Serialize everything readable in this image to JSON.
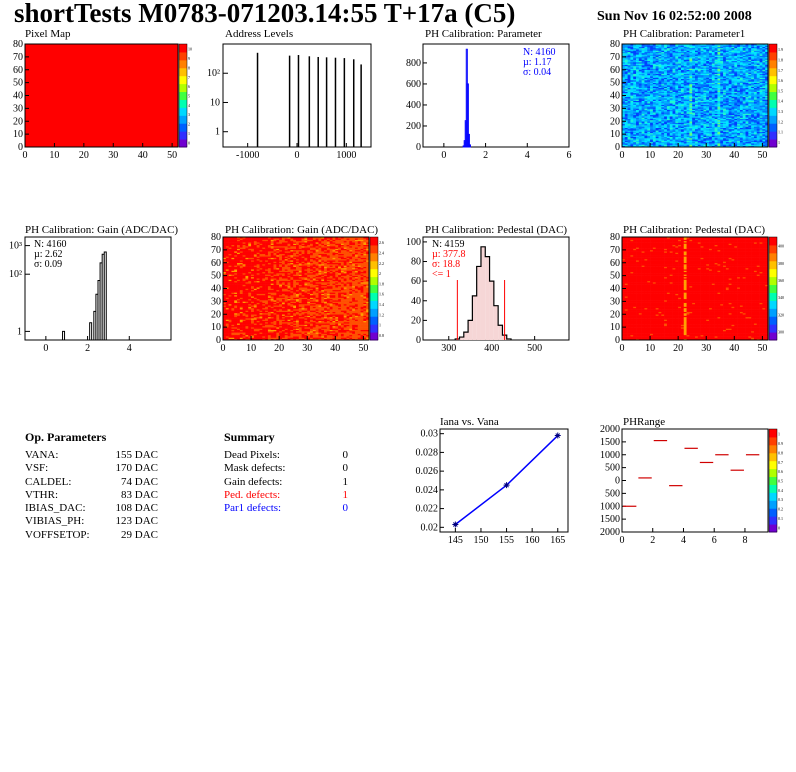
{
  "header": {
    "title": "shortTests M0783-071203.14:55 T+17a (C5)",
    "date": "Sun Nov 16 02:52:00 2008"
  },
  "colors": {
    "axis": "#000000",
    "blue": "#0000ff",
    "red": "#ff0000",
    "hist_black": "#000000"
  },
  "chart_data": [
    {
      "id": "pixel_map",
      "type": "heatmap",
      "title": "Pixel Map",
      "x_ticks": [
        "0",
        "10",
        "20",
        "30",
        "40",
        "50"
      ],
      "y_ticks": [
        "0",
        "10",
        "20",
        "30",
        "40",
        "50",
        "60",
        "70",
        "80"
      ],
      "xlim": [
        0,
        52
      ],
      "ylim": [
        0,
        80
      ],
      "colorbar_ticks": [
        "0",
        "1",
        "2",
        "3",
        "4",
        "5",
        "6",
        "7",
        "8",
        "9",
        "10"
      ],
      "uniform_value": 10
    },
    {
      "id": "address_levels",
      "type": "bar",
      "title": "Address Levels",
      "x_ticks": [
        "-1000",
        "0",
        "1000"
      ],
      "y_ticks": [
        "1",
        "10",
        "10²"
      ],
      "xlim": [
        -1500,
        1500
      ],
      "y_scale": "log",
      "peaks_x": [
        -800,
        -150,
        30,
        250,
        430,
        600,
        780,
        960,
        1150,
        1300
      ],
      "peaks_y": [
        500,
        400,
        420,
        380,
        360,
        350,
        340,
        330,
        300,
        200
      ]
    },
    {
      "id": "ph_cal_param",
      "type": "bar",
      "title": "PH Calibration: Parameter",
      "x_ticks": [
        "0",
        "2",
        "4",
        "6"
      ],
      "y_ticks": [
        "0",
        "200",
        "400",
        "600",
        "800"
      ],
      "xlim": [
        -1,
        6
      ],
      "ylim": [
        0,
        980
      ],
      "x": [
        0.95,
        1.0,
        1.05,
        1.1,
        1.15,
        1.2,
        1.25
      ],
      "y": [
        10,
        60,
        250,
        930,
        600,
        120,
        20
      ],
      "stats": [
        "N: 4160",
        "µ: 1.17",
        "σ: 0.04"
      ]
    },
    {
      "id": "ph_cal_param1",
      "type": "heatmap",
      "title": "PH Calibration: Parameter1",
      "x_ticks": [
        "0",
        "10",
        "20",
        "30",
        "40",
        "50"
      ],
      "y_ticks": [
        "0",
        "10",
        "20",
        "30",
        "40",
        "50",
        "60",
        "70",
        "80"
      ],
      "xlim": [
        0,
        52
      ],
      "ylim": [
        0,
        80
      ],
      "colorbar_ticks": [
        "1",
        "1.1",
        "1.2",
        "1.3",
        "1.4",
        "1.5",
        "1.6",
        "1.7",
        "1.8",
        "1.9"
      ]
    },
    {
      "id": "ph_cal_gain_hist",
      "type": "bar",
      "title": "PH Calibration: Gain (ADC/DAC)",
      "x_ticks": [
        "0",
        "2",
        "4"
      ],
      "y_ticks": [
        "1",
        "10²",
        "10³"
      ],
      "xlim": [
        -1,
        6
      ],
      "y_scale": "log",
      "x": [
        0.8,
        2.1,
        2.3,
        2.4,
        2.5,
        2.6,
        2.7,
        2.8
      ],
      "y": [
        1,
        2,
        5,
        20,
        60,
        250,
        500,
        600
      ],
      "stats": [
        "N: 4160",
        "µ: 2.62",
        "σ: 0.09"
      ]
    },
    {
      "id": "ph_cal_gain_map",
      "type": "heatmap",
      "title": "PH Calibration: Gain (ADC/DAC)",
      "x_ticks": [
        "0",
        "10",
        "20",
        "30",
        "40",
        "50"
      ],
      "y_ticks": [
        "0",
        "10",
        "20",
        "30",
        "40",
        "50",
        "60",
        "70",
        "80"
      ],
      "xlim": [
        0,
        52
      ],
      "ylim": [
        0,
        80
      ],
      "colorbar_ticks": [
        "0.8",
        "1",
        "1.2",
        "1.4",
        "1.6",
        "1.8",
        "2",
        "2.2",
        "2.4",
        "2.6"
      ]
    },
    {
      "id": "ph_cal_pedestal_hist",
      "type": "bar",
      "title": "PH Calibration: Pedestal (DAC)",
      "x_ticks": [
        "300",
        "400",
        "500"
      ],
      "y_ticks": [
        "0",
        "20",
        "40",
        "60",
        "80",
        "100"
      ],
      "xlim": [
        240,
        580
      ],
      "ylim": [
        0,
        105
      ],
      "x": [
        320,
        330,
        340,
        350,
        360,
        370,
        380,
        390,
        400,
        410,
        420,
        430,
        440
      ],
      "y": [
        1,
        3,
        8,
        20,
        45,
        75,
        95,
        85,
        60,
        35,
        15,
        5,
        1
      ],
      "stats_black": [
        "N: 4159"
      ],
      "stats_red": [
        "µ: 377.8",
        "σ: 18.8",
        "<= 1"
      ],
      "red_lines": [
        320,
        430
      ]
    },
    {
      "id": "ph_cal_pedestal_map",
      "type": "heatmap",
      "title": "PH Calibration: Pedestal (DAC)",
      "x_ticks": [
        "0",
        "10",
        "20",
        "30",
        "40",
        "50"
      ],
      "y_ticks": [
        "0",
        "10",
        "20",
        "30",
        "40",
        "50",
        "60",
        "70",
        "80"
      ],
      "xlim": [
        0,
        52
      ],
      "ylim": [
        0,
        80
      ],
      "colorbar_ticks": [
        "300",
        "320",
        "340",
        "360",
        "380",
        "400"
      ]
    },
    {
      "id": "iana_vana",
      "type": "line",
      "title": "Iana vs. Vana",
      "x_ticks": [
        "145",
        "150",
        "155",
        "160",
        "165"
      ],
      "y_ticks": [
        "0.02",
        "0.022",
        "0.024",
        "0.026",
        "0.028",
        "0.03"
      ],
      "xlim": [
        142,
        167
      ],
      "ylim": [
        0.0195,
        0.0305
      ],
      "x": [
        145,
        155,
        165
      ],
      "y": [
        0.0203,
        0.0245,
        0.0298
      ]
    },
    {
      "id": "ph_range",
      "type": "heatmap",
      "title": "PHRange",
      "x_ticks": [
        "0",
        "2",
        "4",
        "6",
        "8"
      ],
      "y_ticks": [
        "2000",
        "1500",
        "1000",
        "500",
        "0",
        "500",
        "1000",
        "1500",
        "2000"
      ],
      "xlim": [
        0,
        9.5
      ],
      "ylim": [
        -2000,
        2000
      ],
      "segments_x": [
        0,
        1,
        2,
        3,
        4,
        5,
        6,
        7,
        8
      ],
      "segments_y": [
        -1000,
        100,
        1550,
        -200,
        1250,
        700,
        1000,
        400,
        1000
      ],
      "colorbar_ticks": [
        "0",
        "0.1",
        "0.2",
        "0.3",
        "0.4",
        "0.5",
        "0.6",
        "0.7",
        "0.8",
        "0.9",
        "1"
      ]
    }
  ],
  "op_params": {
    "title": "Op. Parameters",
    "rows": [
      {
        "name": "VANA:",
        "value": "155 DAC"
      },
      {
        "name": "VSF:",
        "value": "170 DAC"
      },
      {
        "name": "CALDEL:",
        "value": "74 DAC"
      },
      {
        "name": "VTHR:",
        "value": "83 DAC"
      },
      {
        "name": "IBIAS_DAC:",
        "value": "108 DAC"
      },
      {
        "name": "VIBIAS_PH:",
        "value": "123 DAC"
      },
      {
        "name": "VOFFSETOP:",
        "value": "29 DAC"
      }
    ]
  },
  "summary": {
    "title": "Summary",
    "rows": [
      {
        "name": "Dead Pixels:",
        "value": "0",
        "color": "#000000"
      },
      {
        "name": "Mask defects:",
        "value": "0",
        "color": "#000000"
      },
      {
        "name": "Gain defects:",
        "value": "1",
        "color": "#000000"
      },
      {
        "name": "Ped. defects:",
        "value": "1",
        "color": "#ff0000"
      },
      {
        "name": "Par1 defects:",
        "value": "0",
        "color": "#0000ff"
      }
    ]
  }
}
